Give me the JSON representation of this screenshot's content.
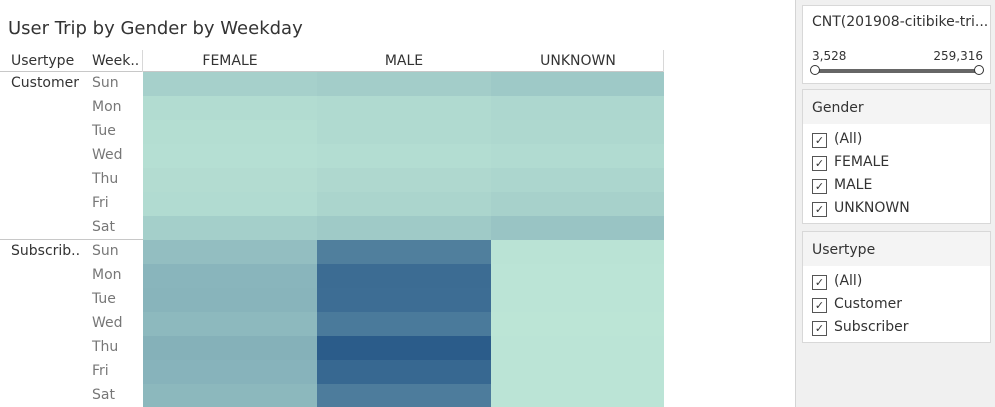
{
  "title": "User Trip by Gender by Weekday",
  "headers": {
    "usertype": "Usertype",
    "weekday": "Week.."
  },
  "chart_data": {
    "type": "heatmap",
    "title": "User Trip by Gender by Weekday",
    "columns": [
      "FEMALE",
      "MALE",
      "UNKNOWN"
    ],
    "rows": [
      {
        "usertype": "Customer",
        "weekday": "Sun",
        "values": [
          47000,
          52000,
          60000
        ]
      },
      {
        "usertype": "Customer",
        "weekday": "Mon",
        "values": [
          26000,
          30000,
          34000
        ]
      },
      {
        "usertype": "Customer",
        "weekday": "Tue",
        "values": [
          22000,
          29000,
          33000
        ]
      },
      {
        "usertype": "Customer",
        "weekday": "Wed",
        "values": [
          20000,
          24000,
          27000
        ]
      },
      {
        "usertype": "Customer",
        "weekday": "Thu",
        "values": [
          25000,
          32000,
          36000
        ]
      },
      {
        "usertype": "Customer",
        "weekday": "Fri",
        "values": [
          28000,
          38000,
          45000
        ]
      },
      {
        "usertype": "Customer",
        "weekday": "Sat",
        "values": [
          50000,
          58000,
          70000
        ]
      },
      {
        "usertype": "Subscrib..",
        "weekday": "Sun",
        "values": [
          80000,
          196000,
          12000
        ]
      },
      {
        "usertype": "Subscrib..",
        "weekday": "Mon",
        "values": [
          96000,
          230000,
          10000
        ]
      },
      {
        "usertype": "Subscrib..",
        "weekday": "Tue",
        "values": [
          98000,
          228000,
          10000
        ]
      },
      {
        "usertype": "Subscrib..",
        "weekday": "Wed",
        "values": [
          90000,
          205000,
          9000
        ]
      },
      {
        "usertype": "Subscrib..",
        "weekday": "Thu",
        "values": [
          104000,
          259316,
          11000
        ]
      },
      {
        "usertype": "Subscrib..",
        "weekday": "Fri",
        "values": [
          100000,
          238000,
          10000
        ]
      },
      {
        "usertype": "Subscrib..",
        "weekday": "Sat",
        "values": [
          92000,
          200000,
          11000
        ]
      }
    ],
    "color_range": [
      3528,
      259316
    ],
    "color_scale": [
      "#bfe8d8",
      "#2b5c8a"
    ]
  },
  "filters": {
    "range": {
      "title": "CNT(201908-citibike-tri...",
      "min_label": "3,528",
      "max_label": "259,316"
    },
    "gender": {
      "title": "Gender",
      "options": [
        "(All)",
        "FEMALE",
        "MALE",
        "UNKNOWN"
      ]
    },
    "usertype": {
      "title": "Usertype",
      "options": [
        "(All)",
        "Customer",
        "Subscriber"
      ]
    }
  }
}
